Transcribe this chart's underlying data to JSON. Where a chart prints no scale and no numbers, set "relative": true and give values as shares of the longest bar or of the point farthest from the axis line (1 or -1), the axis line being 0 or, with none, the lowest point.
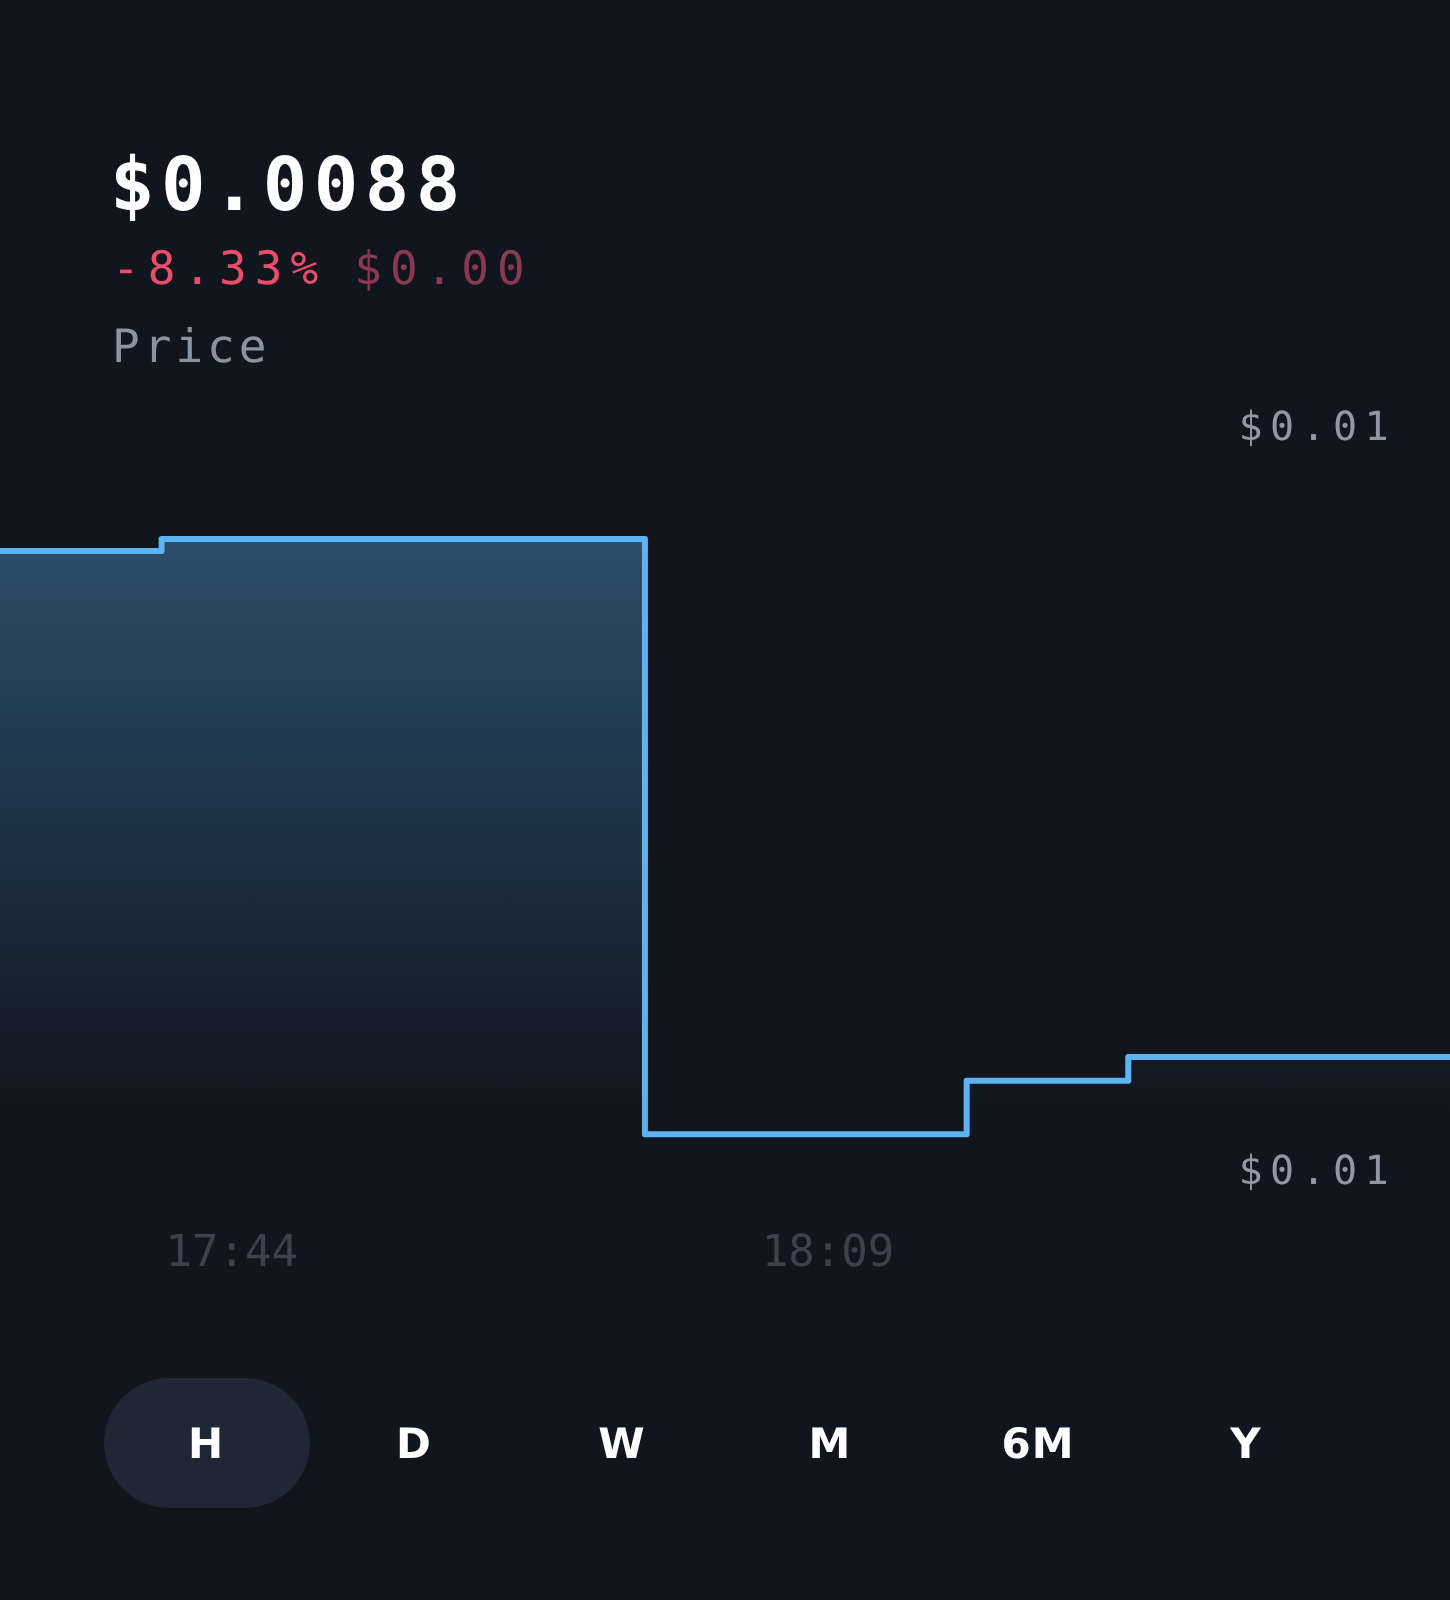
{
  "chart_data": {
    "type": "area",
    "title": "$0.0088",
    "subtitle": "-8.33%",
    "annotations": [
      "$0.00",
      "Price",
      "$0.01",
      "$0.01",
      "H",
      "D",
      "W",
      "M",
      "6M",
      "Y"
    ],
    "x": [
      17.571,
      17.684,
      17.684,
      18.022,
      18.022,
      18.247,
      18.247,
      18.36,
      18.36,
      18.585
    ],
    "values": [
      0.98,
      0.98,
      1,
      1,
      0,
      0,
      0.09,
      0.09,
      0.13,
      0.13
    ],
    "color": "#5cb3f2",
    "relative": true,
    "xlim": [
      17.571,
      18.585
    ],
    "xticks": [
      {
        "value": 17.733,
        "label": "17:44"
      },
      {
        "value": 18.15,
        "label": "18:09"
      }
    ],
    "grid": false,
    "legend": false,
    "marker": "none",
    "line_style": "solid"
  }
}
